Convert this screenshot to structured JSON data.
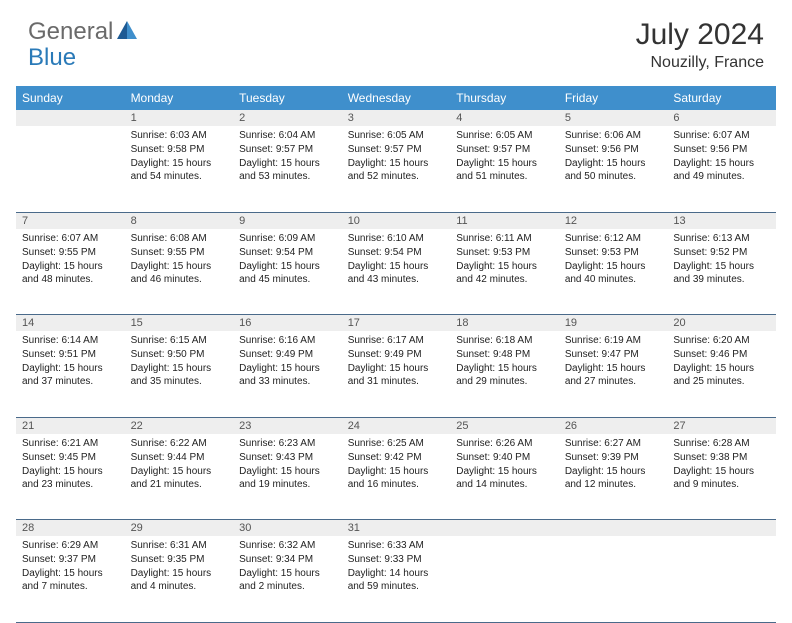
{
  "logo": {
    "part1": "General",
    "part2": "Blue"
  },
  "title": "July 2024",
  "location": "Nouzilly, France",
  "colors": {
    "header_bg": "#3f8fcc",
    "header_text": "#ffffff",
    "daynum_bg": "#eeeeee",
    "border": "#4a6a8a",
    "logo_gray": "#6a6a6a",
    "logo_blue": "#2a7ab8"
  },
  "weekdays": [
    "Sunday",
    "Monday",
    "Tuesday",
    "Wednesday",
    "Thursday",
    "Friday",
    "Saturday"
  ],
  "start_offset": 1,
  "days": [
    {
      "n": 1,
      "sr": "6:03 AM",
      "ss": "9:58 PM",
      "dl": "15 hours and 54 minutes."
    },
    {
      "n": 2,
      "sr": "6:04 AM",
      "ss": "9:57 PM",
      "dl": "15 hours and 53 minutes."
    },
    {
      "n": 3,
      "sr": "6:05 AM",
      "ss": "9:57 PM",
      "dl": "15 hours and 52 minutes."
    },
    {
      "n": 4,
      "sr": "6:05 AM",
      "ss": "9:57 PM",
      "dl": "15 hours and 51 minutes."
    },
    {
      "n": 5,
      "sr": "6:06 AM",
      "ss": "9:56 PM",
      "dl": "15 hours and 50 minutes."
    },
    {
      "n": 6,
      "sr": "6:07 AM",
      "ss": "9:56 PM",
      "dl": "15 hours and 49 minutes."
    },
    {
      "n": 7,
      "sr": "6:07 AM",
      "ss": "9:55 PM",
      "dl": "15 hours and 48 minutes."
    },
    {
      "n": 8,
      "sr": "6:08 AM",
      "ss": "9:55 PM",
      "dl": "15 hours and 46 minutes."
    },
    {
      "n": 9,
      "sr": "6:09 AM",
      "ss": "9:54 PM",
      "dl": "15 hours and 45 minutes."
    },
    {
      "n": 10,
      "sr": "6:10 AM",
      "ss": "9:54 PM",
      "dl": "15 hours and 43 minutes."
    },
    {
      "n": 11,
      "sr": "6:11 AM",
      "ss": "9:53 PM",
      "dl": "15 hours and 42 minutes."
    },
    {
      "n": 12,
      "sr": "6:12 AM",
      "ss": "9:53 PM",
      "dl": "15 hours and 40 minutes."
    },
    {
      "n": 13,
      "sr": "6:13 AM",
      "ss": "9:52 PM",
      "dl": "15 hours and 39 minutes."
    },
    {
      "n": 14,
      "sr": "6:14 AM",
      "ss": "9:51 PM",
      "dl": "15 hours and 37 minutes."
    },
    {
      "n": 15,
      "sr": "6:15 AM",
      "ss": "9:50 PM",
      "dl": "15 hours and 35 minutes."
    },
    {
      "n": 16,
      "sr": "6:16 AM",
      "ss": "9:49 PM",
      "dl": "15 hours and 33 minutes."
    },
    {
      "n": 17,
      "sr": "6:17 AM",
      "ss": "9:49 PM",
      "dl": "15 hours and 31 minutes."
    },
    {
      "n": 18,
      "sr": "6:18 AM",
      "ss": "9:48 PM",
      "dl": "15 hours and 29 minutes."
    },
    {
      "n": 19,
      "sr": "6:19 AM",
      "ss": "9:47 PM",
      "dl": "15 hours and 27 minutes."
    },
    {
      "n": 20,
      "sr": "6:20 AM",
      "ss": "9:46 PM",
      "dl": "15 hours and 25 minutes."
    },
    {
      "n": 21,
      "sr": "6:21 AM",
      "ss": "9:45 PM",
      "dl": "15 hours and 23 minutes."
    },
    {
      "n": 22,
      "sr": "6:22 AM",
      "ss": "9:44 PM",
      "dl": "15 hours and 21 minutes."
    },
    {
      "n": 23,
      "sr": "6:23 AM",
      "ss": "9:43 PM",
      "dl": "15 hours and 19 minutes."
    },
    {
      "n": 24,
      "sr": "6:25 AM",
      "ss": "9:42 PM",
      "dl": "15 hours and 16 minutes."
    },
    {
      "n": 25,
      "sr": "6:26 AM",
      "ss": "9:40 PM",
      "dl": "15 hours and 14 minutes."
    },
    {
      "n": 26,
      "sr": "6:27 AM",
      "ss": "9:39 PM",
      "dl": "15 hours and 12 minutes."
    },
    {
      "n": 27,
      "sr": "6:28 AM",
      "ss": "9:38 PM",
      "dl": "15 hours and 9 minutes."
    },
    {
      "n": 28,
      "sr": "6:29 AM",
      "ss": "9:37 PM",
      "dl": "15 hours and 7 minutes."
    },
    {
      "n": 29,
      "sr": "6:31 AM",
      "ss": "9:35 PM",
      "dl": "15 hours and 4 minutes."
    },
    {
      "n": 30,
      "sr": "6:32 AM",
      "ss": "9:34 PM",
      "dl": "15 hours and 2 minutes."
    },
    {
      "n": 31,
      "sr": "6:33 AM",
      "ss": "9:33 PM",
      "dl": "14 hours and 59 minutes."
    }
  ],
  "labels": {
    "sunrise": "Sunrise:",
    "sunset": "Sunset:",
    "daylight": "Daylight:"
  }
}
